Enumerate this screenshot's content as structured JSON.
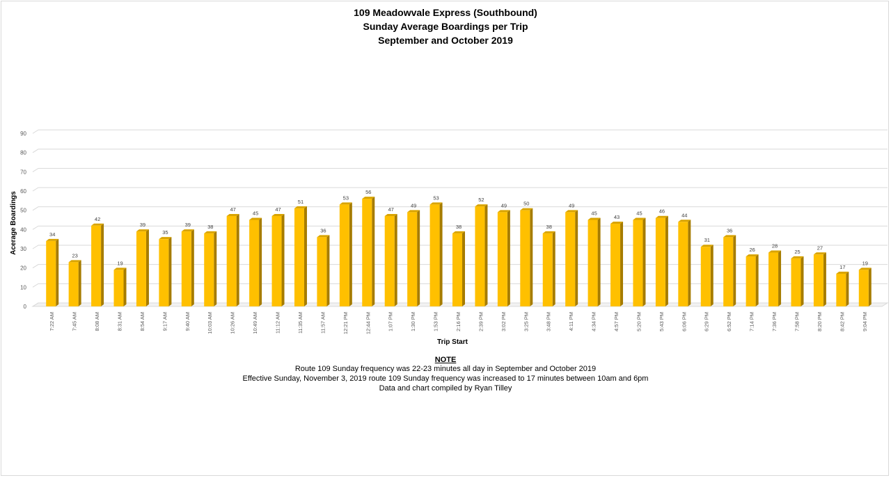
{
  "chart_data": {
    "type": "bar",
    "title": [
      "109 Meadowvale Express (Southbound)",
      "Sunday Average Boardings per Trip",
      "September and October 2019"
    ],
    "xlabel": "Trip Start",
    "ylabel": "Acerage Boardings",
    "ylim": [
      0,
      90
    ],
    "yticks": [
      0,
      10,
      20,
      30,
      40,
      50,
      60,
      70,
      80,
      90
    ],
    "grid": true,
    "bar_color": "#FFC000",
    "bar_side_color": "#A67C00",
    "bar_top_color": "#D9A400",
    "categories": [
      "7:22 AM",
      "7:45 AM",
      "8:08 AM",
      "8:31 AM",
      "8:54 AM",
      "9:17 AM",
      "9:40 AM",
      "10:03 AM",
      "10:26 AM",
      "10:49 AM",
      "11:12 AM",
      "11:35 AM",
      "11:57 AM",
      "12:21 PM",
      "12:44 PM",
      "1:07 PM",
      "1:30 PM",
      "1:53 PM",
      "2:16 PM",
      "2:39 PM",
      "3:02 PM",
      "3:25 PM",
      "3:48 PM",
      "4:11 PM",
      "4:34 PM",
      "4:57 PM",
      "5:20 PM",
      "5:43 PM",
      "6:06 PM",
      "6:29 PM",
      "6:52 PM",
      "7:14 PM",
      "7:36 PM",
      "7:58 PM",
      "8:20 PM",
      "8:42 PM",
      "9:04 PM"
    ],
    "values": [
      34,
      23,
      42,
      19,
      39,
      35,
      39,
      38,
      47,
      45,
      47,
      51,
      36,
      53,
      56,
      47,
      49,
      53,
      38,
      52,
      49,
      50,
      38,
      49,
      45,
      43,
      45,
      46,
      44,
      31,
      36,
      26,
      28,
      25,
      27,
      17,
      19
    ]
  },
  "note": {
    "heading": "NOTE",
    "lines": [
      "Route 109 Sunday frequency was 22-23 minutes all day in September and October 2019",
      "Effective Sunday, November 3, 2019  route 109 Sunday frequency was increased to 17 minutes between 10am and 6pm",
      "Data and chart compiled by Ryan Tilley"
    ]
  }
}
